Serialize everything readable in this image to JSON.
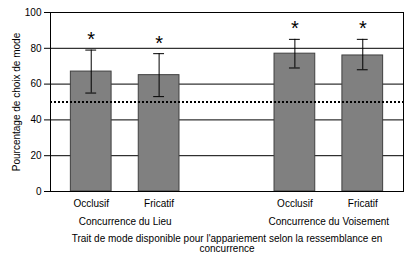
{
  "chart_data": {
    "type": "bar",
    "ylabel": "Pourcentage de choix de mode",
    "xlabel": "Trait de mode disponible pour l'appariement selon la ressemblance en concurrence",
    "categories": [
      "Occlusif",
      "Fricatif",
      null,
      "Occlusif",
      "Fricatif"
    ],
    "group": [
      "Concurrence du Lieu",
      "Concurrence du Lieu",
      null,
      "Concurrence du Voisement",
      "Concurrence du Voisement"
    ],
    "values": [
      67,
      65,
      null,
      77,
      76
    ],
    "error_low": [
      55,
      53,
      null,
      69,
      68
    ],
    "error_high": [
      79,
      77,
      null,
      85,
      85
    ],
    "significance": [
      "*",
      "*",
      null,
      "*",
      "*"
    ],
    "reference_line": 50,
    "color": "#808080",
    "ylim": [
      0,
      100
    ],
    "yticks": [
      0,
      20,
      40,
      60,
      80,
      100
    ],
    "grid": true
  }
}
